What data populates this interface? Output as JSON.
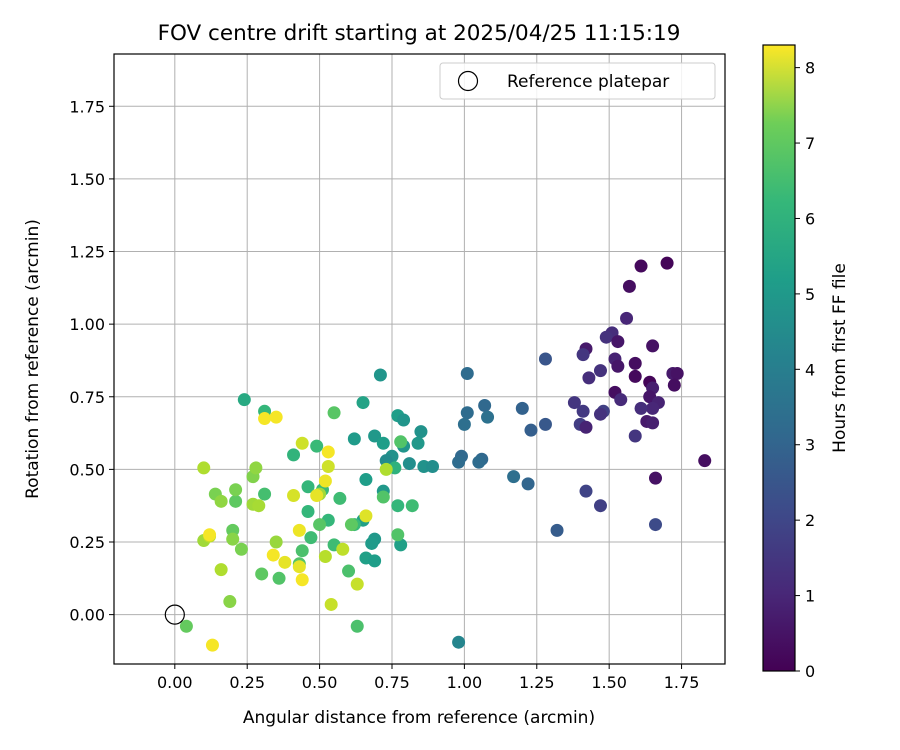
{
  "chart_data": {
    "type": "scatter",
    "title": "FOV centre drift starting at 2025/04/25 11:15:19",
    "xlabel": "Angular distance from reference (arcmin)",
    "ylabel": "Rotation from reference (arcmin)",
    "xlim": [
      -0.21,
      1.9
    ],
    "ylim": [
      -0.17,
      1.93
    ],
    "xticks": [
      "0.00",
      "0.25",
      "0.50",
      "0.75",
      "1.00",
      "1.25",
      "1.50",
      "1.75"
    ],
    "yticks": [
      "0.00",
      "0.25",
      "0.50",
      "0.75",
      "1.00",
      "1.25",
      "1.50",
      "1.75"
    ],
    "grid": true,
    "legend": {
      "position": "top-right",
      "entries": [
        "Reference platepar"
      ]
    },
    "reference_point": {
      "label": "Reference platepar",
      "x": 0.0,
      "y": 0.0,
      "marker": "hollow-circle"
    },
    "colorbar": {
      "label": "Hours from first FF file",
      "colormap": "viridis",
      "range": [
        0,
        8.3
      ],
      "ticks": [
        "0",
        "1",
        "2",
        "3",
        "4",
        "5",
        "6",
        "7",
        "8"
      ]
    },
    "points": [
      {
        "x": 1.7,
        "y": 1.21,
        "h": 0.1
      },
      {
        "x": 1.61,
        "y": 1.2,
        "h": 0.2
      },
      {
        "x": 1.57,
        "y": 1.13,
        "h": 0.3
      },
      {
        "x": 1.56,
        "y": 1.02,
        "h": 0.9
      },
      {
        "x": 1.51,
        "y": 0.97,
        "h": 1.1
      },
      {
        "x": 1.49,
        "y": 0.955,
        "h": 1.2
      },
      {
        "x": 1.53,
        "y": 0.94,
        "h": 0.5
      },
      {
        "x": 1.65,
        "y": 0.925,
        "h": 0.4
      },
      {
        "x": 1.42,
        "y": 0.915,
        "h": 0.6
      },
      {
        "x": 1.41,
        "y": 0.895,
        "h": 1.3
      },
      {
        "x": 1.52,
        "y": 0.88,
        "h": 0.8
      },
      {
        "x": 1.59,
        "y": 0.865,
        "h": 0.3
      },
      {
        "x": 1.53,
        "y": 0.855,
        "h": 0.5
      },
      {
        "x": 1.47,
        "y": 0.84,
        "h": 1.2
      },
      {
        "x": 1.72,
        "y": 0.83,
        "h": 0.6
      },
      {
        "x": 1.735,
        "y": 0.83,
        "h": 0.4
      },
      {
        "x": 1.59,
        "y": 0.82,
        "h": 0.2
      },
      {
        "x": 1.43,
        "y": 0.815,
        "h": 1.1
      },
      {
        "x": 1.64,
        "y": 0.8,
        "h": 0.1
      },
      {
        "x": 1.725,
        "y": 0.79,
        "h": 0.3
      },
      {
        "x": 1.65,
        "y": 0.78,
        "h": 0.7
      },
      {
        "x": 1.52,
        "y": 0.765,
        "h": 0.3
      },
      {
        "x": 1.64,
        "y": 0.75,
        "h": 0.5
      },
      {
        "x": 1.54,
        "y": 0.74,
        "h": 1.0
      },
      {
        "x": 1.67,
        "y": 0.73,
        "h": 0.8
      },
      {
        "x": 1.38,
        "y": 0.73,
        "h": 1.3
      },
      {
        "x": 1.65,
        "y": 0.71,
        "h": 0.9
      },
      {
        "x": 1.61,
        "y": 0.71,
        "h": 1.1
      },
      {
        "x": 1.41,
        "y": 0.7,
        "h": 1.4
      },
      {
        "x": 1.48,
        "y": 0.7,
        "h": 1.6
      },
      {
        "x": 1.47,
        "y": 0.69,
        "h": 1.2
      },
      {
        "x": 1.63,
        "y": 0.665,
        "h": 0.6
      },
      {
        "x": 1.65,
        "y": 0.66,
        "h": 0.7
      },
      {
        "x": 1.4,
        "y": 0.655,
        "h": 1.5
      },
      {
        "x": 1.42,
        "y": 0.645,
        "h": 0.8
      },
      {
        "x": 1.59,
        "y": 0.615,
        "h": 1.3
      },
      {
        "x": 1.83,
        "y": 0.53,
        "h": 0.3
      },
      {
        "x": 1.66,
        "y": 0.47,
        "h": 0.4
      },
      {
        "x": 1.42,
        "y": 0.425,
        "h": 1.7
      },
      {
        "x": 1.47,
        "y": 0.375,
        "h": 1.6
      },
      {
        "x": 1.66,
        "y": 0.31,
        "h": 1.9
      },
      {
        "x": 1.28,
        "y": 0.88,
        "h": 2.2
      },
      {
        "x": 1.28,
        "y": 0.655,
        "h": 2.3
      },
      {
        "x": 1.23,
        "y": 0.635,
        "h": 2.5
      },
      {
        "x": 1.32,
        "y": 0.29,
        "h": 2.4
      },
      {
        "x": 1.2,
        "y": 0.71,
        "h": 2.6
      },
      {
        "x": 1.01,
        "y": 0.83,
        "h": 2.9
      },
      {
        "x": 1.07,
        "y": 0.72,
        "h": 2.8
      },
      {
        "x": 1.01,
        "y": 0.695,
        "h": 2.9
      },
      {
        "x": 1.08,
        "y": 0.68,
        "h": 3.1
      },
      {
        "x": 1.0,
        "y": 0.655,
        "h": 3.0
      },
      {
        "x": 0.99,
        "y": 0.545,
        "h": 2.8
      },
      {
        "x": 0.98,
        "y": 0.525,
        "h": 2.9
      },
      {
        "x": 1.06,
        "y": 0.535,
        "h": 2.8
      },
      {
        "x": 1.05,
        "y": 0.525,
        "h": 2.9
      },
      {
        "x": 1.17,
        "y": 0.475,
        "h": 3.0
      },
      {
        "x": 1.22,
        "y": 0.45,
        "h": 2.7
      },
      {
        "x": 0.98,
        "y": -0.095,
        "h": 3.8
      },
      {
        "x": 0.71,
        "y": 0.825,
        "h": 4.3
      },
      {
        "x": 0.77,
        "y": 0.685,
        "h": 4.6
      },
      {
        "x": 0.79,
        "y": 0.67,
        "h": 4.3
      },
      {
        "x": 0.85,
        "y": 0.63,
        "h": 4.2
      },
      {
        "x": 0.69,
        "y": 0.615,
        "h": 4.4
      },
      {
        "x": 0.62,
        "y": 0.605,
        "h": 4.5
      },
      {
        "x": 0.72,
        "y": 0.59,
        "h": 4.6
      },
      {
        "x": 0.84,
        "y": 0.59,
        "h": 4.4
      },
      {
        "x": 0.79,
        "y": 0.58,
        "h": 4.3
      },
      {
        "x": 0.75,
        "y": 0.545,
        "h": 4.2
      },
      {
        "x": 0.73,
        "y": 0.53,
        "h": 4.0
      },
      {
        "x": 0.81,
        "y": 0.52,
        "h": 4.1
      },
      {
        "x": 0.74,
        "y": 0.51,
        "h": 4.1
      },
      {
        "x": 0.86,
        "y": 0.51,
        "h": 4.2
      },
      {
        "x": 0.89,
        "y": 0.51,
        "h": 4.1
      },
      {
        "x": 0.66,
        "y": 0.465,
        "h": 4.6
      },
      {
        "x": 0.72,
        "y": 0.425,
        "h": 4.4
      },
      {
        "x": 0.65,
        "y": 0.325,
        "h": 4.7
      },
      {
        "x": 0.69,
        "y": 0.26,
        "h": 4.4
      },
      {
        "x": 0.66,
        "y": 0.195,
        "h": 4.7
      },
      {
        "x": 0.68,
        "y": 0.245,
        "h": 4.5
      },
      {
        "x": 0.69,
        "y": 0.185,
        "h": 4.6
      },
      {
        "x": 0.78,
        "y": 0.24,
        "h": 4.7
      },
      {
        "x": 0.65,
        "y": 0.73,
        "h": 4.8
      },
      {
        "x": 0.24,
        "y": 0.74,
        "h": 5.0
      },
      {
        "x": 0.31,
        "y": 0.7,
        "h": 5.5
      },
      {
        "x": 0.41,
        "y": 0.55,
        "h": 5.4
      },
      {
        "x": 0.49,
        "y": 0.58,
        "h": 5.6
      },
      {
        "x": 0.46,
        "y": 0.44,
        "h": 5.5
      },
      {
        "x": 0.51,
        "y": 0.43,
        "h": 5.6
      },
      {
        "x": 0.46,
        "y": 0.355,
        "h": 5.5
      },
      {
        "x": 0.62,
        "y": 0.31,
        "h": 5.6
      },
      {
        "x": 0.53,
        "y": 0.325,
        "h": 5.5
      },
      {
        "x": 0.47,
        "y": 0.265,
        "h": 5.7
      },
      {
        "x": 0.31,
        "y": 0.415,
        "h": 5.8
      },
      {
        "x": 0.77,
        "y": 0.375,
        "h": 5.5
      },
      {
        "x": 0.82,
        "y": 0.375,
        "h": 5.7
      },
      {
        "x": 0.76,
        "y": 0.505,
        "h": 5.3
      },
      {
        "x": 0.78,
        "y": 0.595,
        "h": 6.0
      },
      {
        "x": 0.55,
        "y": 0.695,
        "h": 6.1
      },
      {
        "x": 0.57,
        "y": 0.4,
        "h": 5.7
      },
      {
        "x": 0.6,
        "y": 0.15,
        "h": 5.9
      },
      {
        "x": 0.72,
        "y": 0.405,
        "h": 6.0
      },
      {
        "x": 0.77,
        "y": 0.275,
        "h": 6.0
      },
      {
        "x": 0.61,
        "y": 0.31,
        "h": 6.2
      },
      {
        "x": 0.55,
        "y": 0.24,
        "h": 5.7
      },
      {
        "x": 0.44,
        "y": 0.22,
        "h": 5.9
      },
      {
        "x": 0.5,
        "y": 0.31,
        "h": 6.1
      },
      {
        "x": 0.43,
        "y": 0.175,
        "h": 6.0
      },
      {
        "x": 0.36,
        "y": 0.125,
        "h": 6.0
      },
      {
        "x": 0.3,
        "y": 0.14,
        "h": 6.2
      },
      {
        "x": 0.2,
        "y": 0.29,
        "h": 6.3
      },
      {
        "x": 0.21,
        "y": 0.39,
        "h": 6.2
      },
      {
        "x": 0.27,
        "y": 0.475,
        "h": 6.7
      },
      {
        "x": 0.28,
        "y": 0.505,
        "h": 6.9
      },
      {
        "x": 0.63,
        "y": -0.04,
        "h": 5.9
      },
      {
        "x": 0.04,
        "y": -0.04,
        "h": 6.3
      },
      {
        "x": 0.14,
        "y": 0.415,
        "h": 6.6
      },
      {
        "x": 0.16,
        "y": 0.39,
        "h": 6.9
      },
      {
        "x": 0.21,
        "y": 0.43,
        "h": 6.6
      },
      {
        "x": 0.23,
        "y": 0.225,
        "h": 6.6
      },
      {
        "x": 0.2,
        "y": 0.26,
        "h": 6.8
      },
      {
        "x": 0.19,
        "y": 0.045,
        "h": 6.8
      },
      {
        "x": 0.35,
        "y": 0.25,
        "h": 7.0
      },
      {
        "x": 0.27,
        "y": 0.38,
        "h": 7.1
      },
      {
        "x": 0.29,
        "y": 0.375,
        "h": 7.2
      },
      {
        "x": 0.1,
        "y": 0.505,
        "h": 7.3
      },
      {
        "x": 0.1,
        "y": 0.255,
        "h": 7.1
      },
      {
        "x": 0.12,
        "y": 0.27,
        "h": 7.5
      },
      {
        "x": 0.16,
        "y": 0.155,
        "h": 7.3
      },
      {
        "x": 0.5,
        "y": 0.415,
        "h": 7.1
      },
      {
        "x": 0.52,
        "y": 0.2,
        "h": 7.4
      },
      {
        "x": 0.54,
        "y": 0.035,
        "h": 7.6
      },
      {
        "x": 0.58,
        "y": 0.225,
        "h": 7.5
      },
      {
        "x": 0.63,
        "y": 0.105,
        "h": 7.6
      },
      {
        "x": 0.44,
        "y": 0.59,
        "h": 7.7
      },
      {
        "x": 0.53,
        "y": 0.51,
        "h": 7.7
      },
      {
        "x": 0.73,
        "y": 0.5,
        "h": 7.3
      },
      {
        "x": 0.66,
        "y": 0.34,
        "h": 7.9
      },
      {
        "x": 0.49,
        "y": 0.41,
        "h": 8.0
      },
      {
        "x": 0.52,
        "y": 0.46,
        "h": 8.1
      },
      {
        "x": 0.41,
        "y": 0.41,
        "h": 7.8
      },
      {
        "x": 0.43,
        "y": 0.29,
        "h": 8.1
      },
      {
        "x": 0.38,
        "y": 0.18,
        "h": 8.0
      },
      {
        "x": 0.34,
        "y": 0.205,
        "h": 8.2
      },
      {
        "x": 0.44,
        "y": 0.12,
        "h": 8.2
      },
      {
        "x": 0.43,
        "y": 0.165,
        "h": 8.0
      },
      {
        "x": 0.12,
        "y": 0.275,
        "h": 8.2
      },
      {
        "x": 0.13,
        "y": -0.105,
        "h": 8.2
      },
      {
        "x": 0.31,
        "y": 0.675,
        "h": 8.2
      },
      {
        "x": 0.35,
        "y": 0.68,
        "h": 8.2
      },
      {
        "x": 0.53,
        "y": 0.56,
        "h": 8.2
      }
    ]
  }
}
